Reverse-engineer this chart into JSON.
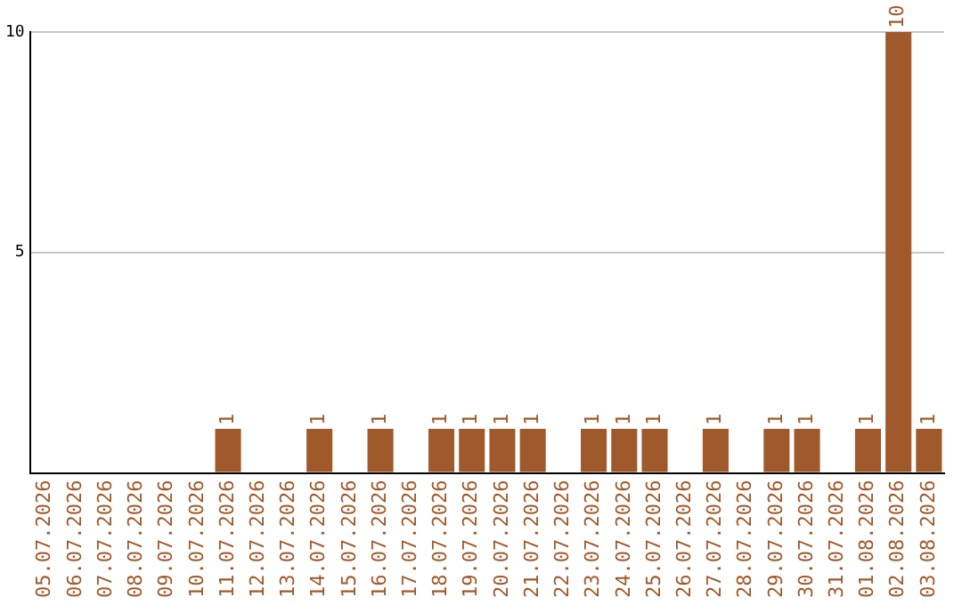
{
  "chart_data": {
    "type": "bar",
    "categories": [
      "05.07.2026",
      "06.07.2026",
      "07.07.2026",
      "08.07.2026",
      "09.07.2026",
      "10.07.2026",
      "11.07.2026",
      "12.07.2026",
      "13.07.2026",
      "14.07.2026",
      "15.07.2026",
      "16.07.2026",
      "17.07.2026",
      "18.07.2026",
      "19.07.2026",
      "20.07.2026",
      "21.07.2026",
      "22.07.2026",
      "23.07.2026",
      "24.07.2026",
      "25.07.2026",
      "26.07.2026",
      "27.07.2026",
      "28.07.2026",
      "29.07.2026",
      "30.07.2026",
      "31.07.2026",
      "01.08.2026",
      "02.08.2026",
      "03.08.2026"
    ],
    "values": [
      0,
      0,
      0,
      0,
      0,
      0,
      1,
      0,
      0,
      1,
      0,
      1,
      0,
      1,
      1,
      1,
      1,
      0,
      1,
      1,
      1,
      0,
      1,
      0,
      1,
      1,
      0,
      1,
      10,
      1
    ],
    "value_labels": [
      null,
      null,
      null,
      null,
      null,
      null,
      "1",
      null,
      null,
      "1",
      null,
      "1",
      null,
      "1",
      "1",
      "1",
      "1",
      null,
      "1",
      "1",
      "1",
      null,
      "1",
      null,
      "1",
      "1",
      null,
      "1",
      "10",
      "1"
    ],
    "color": "#a0592a",
    "ylim": [
      0,
      10
    ],
    "yticks": [
      {
        "value": 0,
        "label": null
      },
      5,
      10
    ],
    "grid": "y",
    "legend": false
  }
}
